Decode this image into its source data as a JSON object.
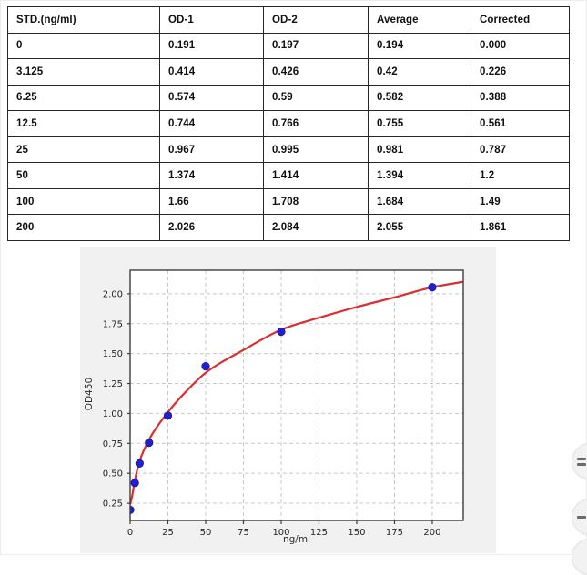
{
  "table": {
    "headers": [
      "STD.(ng/ml)",
      "OD-1",
      "OD-2",
      "Average",
      "Corrected"
    ],
    "rows": [
      [
        "0",
        "0.191",
        "0.197",
        "0.194",
        "0.000"
      ],
      [
        "3.125",
        "0.414",
        "0.426",
        "0.42",
        "0.226"
      ],
      [
        "6.25",
        "0.574",
        "0.59",
        "0.582",
        "0.388"
      ],
      [
        "12.5",
        "0.744",
        "0.766",
        "0.755",
        "0.561"
      ],
      [
        "25",
        "0.967",
        "0.995",
        "0.981",
        "0.787"
      ],
      [
        "50",
        "1.374",
        "1.414",
        "1.394",
        "1.2"
      ],
      [
        "100",
        "1.66",
        "1.708",
        "1.684",
        "1.49"
      ],
      [
        "200",
        "2.026",
        "2.084",
        "2.055",
        "1.861"
      ]
    ]
  },
  "chart_data": {
    "type": "scatter",
    "title": "",
    "xlabel": "ng/ml",
    "ylabel": "OD450",
    "xlim": [
      0,
      220.5
    ],
    "ylim": [
      0.106,
      2.197
    ],
    "x_ticks": [
      0,
      25,
      50,
      75,
      100,
      125,
      150,
      175,
      200
    ],
    "y_ticks": [
      "0.25",
      "0.50",
      "0.75",
      "1.00",
      "1.25",
      "1.50",
      "1.75",
      "2.00"
    ],
    "grid": true,
    "legend": "none",
    "series": [
      {
        "name": "standards-scatter",
        "type": "scatter",
        "color": "#2121cc",
        "points": [
          [
            0,
            0.194
          ],
          [
            3.125,
            0.42
          ],
          [
            6.25,
            0.582
          ],
          [
            12.5,
            0.755
          ],
          [
            25,
            0.981
          ],
          [
            50,
            1.394
          ],
          [
            100,
            1.684
          ],
          [
            200,
            2.055
          ]
        ]
      },
      {
        "name": "fitted-curve",
        "type": "line",
        "color": "#d92f2f",
        "points": [
          [
            0,
            0.24
          ],
          [
            1.5,
            0.32
          ],
          [
            3.125,
            0.44
          ],
          [
            6.25,
            0.6
          ],
          [
            12.5,
            0.78
          ],
          [
            25,
            1.01
          ],
          [
            37.5,
            1.19
          ],
          [
            50,
            1.34
          ],
          [
            75,
            1.53
          ],
          [
            100,
            1.7
          ],
          [
            125,
            1.8
          ],
          [
            150,
            1.89
          ],
          [
            175,
            1.97
          ],
          [
            200,
            2.055
          ],
          [
            220.5,
            2.1
          ]
        ]
      }
    ],
    "colors": {
      "figure_bg": "#f1f1f2",
      "plot_bg": "#ffffff",
      "spine": "#3d3d3d",
      "grid": "#c8c8c8",
      "tick_text": "#262626"
    }
  },
  "floating_buttons": [
    {
      "name": "divide-button",
      "glyph": "divide",
      "dashes": 2
    },
    {
      "name": "minus-button",
      "glyph": "minus",
      "dashes": 1
    },
    {
      "name": "hidden-button",
      "glyph": "none",
      "dashes": 0
    }
  ]
}
